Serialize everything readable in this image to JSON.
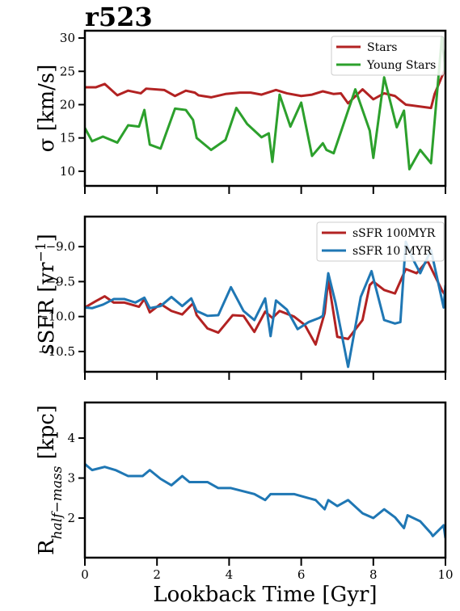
{
  "chart_data": [
    {
      "type": "line",
      "title": "r523",
      "ylabel": [
        "σ [km/s]"
      ],
      "ylabel_format": [
        "normal"
      ],
      "ylim": [
        7.8,
        31.1
      ],
      "yticks": [
        10,
        15,
        20,
        25,
        30
      ],
      "xlim": [
        0,
        10
      ],
      "xticks": [
        0,
        2,
        4,
        6,
        8,
        10
      ],
      "xtick_labels": false,
      "legend": "upper right",
      "series": [
        {
          "name": "Stars",
          "color": "#b22222",
          "x": [
            0,
            0.3,
            0.55,
            0.9,
            1.2,
            1.55,
            1.7,
            2.2,
            2.5,
            2.8,
            3.05,
            3.15,
            3.5,
            3.9,
            4.3,
            4.6,
            4.9,
            5.3,
            5.6,
            6.0,
            6.3,
            6.6,
            6.9,
            7.1,
            7.3,
            7.7,
            8.0,
            8.3,
            8.6,
            8.9,
            9.6,
            9.7,
            10.0
          ],
          "values": [
            22.6,
            22.6,
            23.1,
            21.4,
            22.1,
            21.7,
            22.4,
            22.2,
            21.3,
            22.1,
            21.8,
            21.4,
            21.1,
            21.6,
            21.8,
            21.8,
            21.5,
            22.2,
            21.7,
            21.3,
            21.5,
            22.0,
            21.6,
            21.7,
            20.2,
            22.3,
            20.8,
            21.7,
            21.3,
            20.0,
            19.5,
            21.6,
            25.5
          ]
        },
        {
          "name": "Young Stars",
          "color": "#2ca02c",
          "x": [
            0,
            0.2,
            0.5,
            0.9,
            1.2,
            1.5,
            1.65,
            1.8,
            2.1,
            2.5,
            2.8,
            3.0,
            3.1,
            3.5,
            3.9,
            4.2,
            4.5,
            4.9,
            5.1,
            5.2,
            5.4,
            5.7,
            6.0,
            6.3,
            6.6,
            6.7,
            6.9,
            7.5,
            7.9,
            8.0,
            8.3,
            8.65,
            8.85,
            9.0,
            9.3,
            9.6,
            9.9,
            10.0
          ],
          "values": [
            16.5,
            14.5,
            15.2,
            14.3,
            16.9,
            16.7,
            19.2,
            14.0,
            13.4,
            19.4,
            19.2,
            17.7,
            15.0,
            13.2,
            14.7,
            19.5,
            17.1,
            15.1,
            15.7,
            11.4,
            21.5,
            16.7,
            20.3,
            12.3,
            14.2,
            13.2,
            12.7,
            22.3,
            16.1,
            12.0,
            24.1,
            16.6,
            19.1,
            10.3,
            13.2,
            11.2,
            30.1,
            25.0
          ]
        }
      ]
    },
    {
      "type": "line",
      "ylabel": [
        "sSFR [yr",
        "−1",
        "]"
      ],
      "ylabel_format": [
        "normal",
        "super",
        "normal"
      ],
      "ylim": [
        -10.79,
        -8.57
      ],
      "yticks": [
        {
          "value": -9,
          "label": "−9.0"
        },
        {
          "value": -9.5,
          "label": "−9.5"
        },
        {
          "value": -10,
          "label": "−10.0"
        },
        {
          "value": -10.5,
          "label": "−10.5"
        }
      ],
      "xlim": [
        0,
        10
      ],
      "xticks": [
        0,
        2,
        4,
        6,
        8,
        10
      ],
      "xtick_labels": false,
      "legend": "upper right",
      "series": [
        {
          "name": "sSFR 100MYR",
          "color": "#b22222",
          "x": [
            0,
            0.3,
            0.55,
            0.8,
            1.1,
            1.5,
            1.65,
            1.8,
            2.1,
            2.4,
            2.7,
            3.0,
            3.1,
            3.4,
            3.7,
            4.1,
            4.4,
            4.7,
            5.0,
            5.2,
            5.4,
            5.8,
            6.1,
            6.4,
            6.65,
            6.75,
            7.0,
            7.3,
            7.7,
            7.9,
            8.0,
            8.3,
            8.6,
            8.9,
            9.2,
            9.5,
            9.9,
            10.0
          ],
          "values": [
            -9.87,
            -9.78,
            -9.71,
            -9.8,
            -9.8,
            -9.86,
            -9.75,
            -9.94,
            -9.82,
            -9.92,
            -9.97,
            -9.81,
            -9.98,
            -10.17,
            -10.23,
            -9.98,
            -9.99,
            -10.22,
            -9.93,
            -10.02,
            -9.92,
            -10.0,
            -10.12,
            -10.4,
            -9.95,
            -9.47,
            -10.29,
            -10.32,
            -10.05,
            -9.55,
            -9.5,
            -9.62,
            -9.67,
            -9.32,
            -9.38,
            -9.2,
            -9.62,
            -9.7
          ]
        },
        {
          "name": "sSFR 10 MYR",
          "color": "#1f77b4",
          "x": [
            0,
            0.2,
            0.5,
            0.8,
            1.1,
            1.4,
            1.65,
            1.8,
            2.1,
            2.4,
            2.7,
            2.95,
            3.1,
            3.4,
            3.7,
            4.05,
            4.4,
            4.7,
            5.0,
            5.15,
            5.3,
            5.6,
            5.9,
            6.2,
            6.5,
            6.6,
            6.75,
            6.95,
            7.3,
            7.65,
            7.95,
            8.3,
            8.6,
            8.75,
            8.9,
            9.1,
            9.3,
            9.6,
            9.95,
            10.0
          ],
          "values": [
            -9.87,
            -9.88,
            -9.83,
            -9.75,
            -9.75,
            -9.8,
            -9.73,
            -9.88,
            -9.85,
            -9.72,
            -9.85,
            -9.74,
            -9.92,
            -9.99,
            -9.98,
            -9.58,
            -9.92,
            -10.05,
            -9.74,
            -10.28,
            -9.77,
            -9.9,
            -10.18,
            -10.08,
            -10.02,
            -9.99,
            -9.38,
            -9.8,
            -10.72,
            -9.72,
            -9.35,
            -10.05,
            -10.1,
            -10.08,
            -8.93,
            -9.18,
            -9.38,
            -9.05,
            -9.87,
            -9.55
          ]
        }
      ]
    },
    {
      "type": "line",
      "ylabel": [
        "R",
        "half−mass",
        " [kpc]"
      ],
      "ylabel_format": [
        "normal",
        "sub",
        "normal"
      ],
      "ylim": [
        1.01,
        4.89
      ],
      "yticks": [
        2,
        3,
        4
      ],
      "xlim": [
        0,
        10
      ],
      "xticks": [
        0,
        2,
        4,
        6,
        8,
        10
      ],
      "xtick_labels": true,
      "xlabel": "Lookback Time [Gyr]",
      "series": [
        {
          "color": "#1f77b4",
          "x": [
            0,
            0.2,
            0.55,
            0.85,
            1.2,
            1.6,
            1.8,
            2.1,
            2.4,
            2.7,
            2.9,
            3.4,
            3.7,
            4.05,
            4.7,
            5.0,
            5.15,
            5.8,
            6.4,
            6.65,
            6.75,
            7.0,
            7.3,
            7.7,
            8.0,
            8.3,
            8.6,
            8.85,
            8.95,
            9.3,
            9.6,
            9.65,
            9.95,
            10.0
          ],
          "values": [
            3.35,
            3.2,
            3.28,
            3.2,
            3.05,
            3.05,
            3.2,
            2.98,
            2.82,
            3.05,
            2.9,
            2.9,
            2.75,
            2.75,
            2.6,
            2.45,
            2.6,
            2.6,
            2.45,
            2.22,
            2.45,
            2.3,
            2.45,
            2.12,
            2.0,
            2.22,
            2.02,
            1.75,
            2.07,
            1.92,
            1.62,
            1.55,
            1.82,
            1.5
          ]
        }
      ]
    }
  ]
}
